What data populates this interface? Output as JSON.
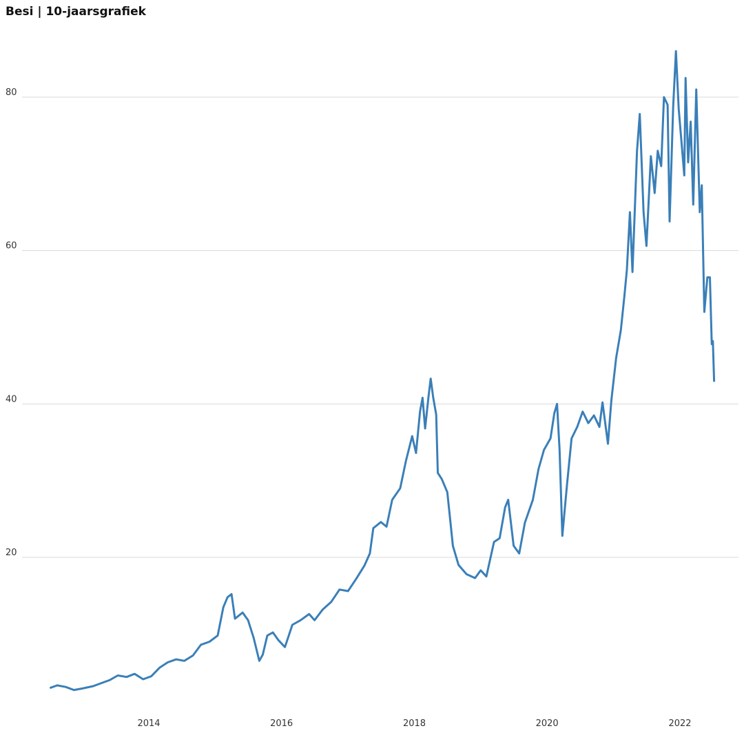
{
  "chart_data": {
    "type": "line",
    "title": "Besi | 10-jaarsgrafiek",
    "xlabel": "",
    "ylabel": "",
    "x_axis": {
      "kind": "time",
      "range": [
        "2012-07-01",
        "2022-12-31"
      ],
      "ticks": [
        {
          "value": "2014-01-01",
          "label": "2014"
        },
        {
          "value": "2016-01-01",
          "label": "2016"
        },
        {
          "value": "2018-01-01",
          "label": "2018"
        },
        {
          "value": "2020-01-01",
          "label": "2020"
        },
        {
          "value": "2022-01-01",
          "label": "2022"
        }
      ]
    },
    "y_axis": {
      "range": [
        0,
        88
      ],
      "ticks": [
        {
          "value": 20,
          "label": "20"
        },
        {
          "value": 40,
          "label": "40"
        },
        {
          "value": 60,
          "label": "60"
        },
        {
          "value": 80,
          "label": "80"
        }
      ]
    },
    "grid": "horizontal",
    "legend": "none",
    "line_color": "#3a7fb8",
    "grid_color": "#d9d9d9",
    "series": [
      {
        "name": "",
        "points": [
          [
            "2012-07-10",
            3.0
          ],
          [
            "2012-08-15",
            3.3
          ],
          [
            "2012-10-01",
            3.1
          ],
          [
            "2012-11-15",
            2.7
          ],
          [
            "2013-01-01",
            2.9
          ],
          [
            "2013-03-01",
            3.2
          ],
          [
            "2013-04-15",
            3.6
          ],
          [
            "2013-06-01",
            4.0
          ],
          [
            "2013-07-15",
            4.6
          ],
          [
            "2013-09-01",
            4.4
          ],
          [
            "2013-10-15",
            4.8
          ],
          [
            "2013-12-01",
            4.1
          ],
          [
            "2014-01-15",
            4.5
          ],
          [
            "2014-03-01",
            5.6
          ],
          [
            "2014-04-15",
            6.3
          ],
          [
            "2014-06-01",
            6.7
          ],
          [
            "2014-07-15",
            6.5
          ],
          [
            "2014-09-01",
            7.2
          ],
          [
            "2014-10-15",
            8.6
          ],
          [
            "2014-12-01",
            9.0
          ],
          [
            "2015-01-15",
            9.8
          ],
          [
            "2015-02-15",
            13.5
          ],
          [
            "2015-03-10",
            14.8
          ],
          [
            "2015-04-01",
            15.2
          ],
          [
            "2015-04-20",
            12.0
          ],
          [
            "2015-06-01",
            12.8
          ],
          [
            "2015-07-01",
            11.8
          ],
          [
            "2015-08-01",
            9.5
          ],
          [
            "2015-09-01",
            6.5
          ],
          [
            "2015-09-20",
            7.3
          ],
          [
            "2015-10-15",
            9.8
          ],
          [
            "2015-11-15",
            10.2
          ],
          [
            "2015-12-15",
            9.2
          ],
          [
            "2016-01-20",
            8.3
          ],
          [
            "2016-03-01",
            11.2
          ],
          [
            "2016-04-15",
            11.8
          ],
          [
            "2016-06-01",
            12.6
          ],
          [
            "2016-07-01",
            11.8
          ],
          [
            "2016-08-15",
            13.2
          ],
          [
            "2016-10-01",
            14.2
          ],
          [
            "2016-11-15",
            15.8
          ],
          [
            "2017-01-01",
            15.6
          ],
          [
            "2017-02-15",
            17.2
          ],
          [
            "2017-04-01",
            18.9
          ],
          [
            "2017-05-01",
            20.5
          ],
          [
            "2017-05-20",
            23.8
          ],
          [
            "2017-07-01",
            24.6
          ],
          [
            "2017-08-01",
            24.0
          ],
          [
            "2017-09-01",
            27.5
          ],
          [
            "2017-10-15",
            29.0
          ],
          [
            "2017-11-15",
            32.5
          ],
          [
            "2017-12-20",
            35.8
          ],
          [
            "2018-01-10",
            33.6
          ],
          [
            "2018-02-01",
            39.0
          ],
          [
            "2018-02-15",
            40.8
          ],
          [
            "2018-03-01",
            36.8
          ],
          [
            "2018-03-20",
            41.0
          ],
          [
            "2018-04-01",
            43.3
          ],
          [
            "2018-04-15",
            40.8
          ],
          [
            "2018-05-01",
            38.6
          ],
          [
            "2018-05-10",
            31.0
          ],
          [
            "2018-06-01",
            30.2
          ],
          [
            "2018-07-01",
            28.5
          ],
          [
            "2018-07-20",
            24.2
          ],
          [
            "2018-08-01",
            21.5
          ],
          [
            "2018-09-01",
            19.0
          ],
          [
            "2018-10-15",
            17.8
          ],
          [
            "2018-12-01",
            17.3
          ],
          [
            "2019-01-01",
            18.3
          ],
          [
            "2019-02-01",
            17.5
          ],
          [
            "2019-03-15",
            22.0
          ],
          [
            "2019-04-15",
            22.5
          ],
          [
            "2019-05-15",
            26.5
          ],
          [
            "2019-06-01",
            27.5
          ],
          [
            "2019-07-01",
            21.5
          ],
          [
            "2019-08-01",
            20.5
          ],
          [
            "2019-09-01",
            24.5
          ],
          [
            "2019-10-15",
            27.5
          ],
          [
            "2019-11-15",
            31.5
          ],
          [
            "2019-12-15",
            34.0
          ],
          [
            "2020-01-20",
            35.5
          ],
          [
            "2020-02-10",
            38.8
          ],
          [
            "2020-02-25",
            40.0
          ],
          [
            "2020-03-10",
            34.0
          ],
          [
            "2020-03-25",
            22.8
          ],
          [
            "2020-04-20",
            29.5
          ],
          [
            "2020-05-15",
            35.5
          ],
          [
            "2020-06-15",
            37.0
          ],
          [
            "2020-07-15",
            39.0
          ],
          [
            "2020-08-15",
            37.5
          ],
          [
            "2020-09-15",
            38.5
          ],
          [
            "2020-10-15",
            37.0
          ],
          [
            "2020-11-01",
            40.2
          ],
          [
            "2020-12-01",
            34.8
          ],
          [
            "2020-12-20",
            40.5
          ],
          [
            "2021-01-15",
            46.0
          ],
          [
            "2021-02-10",
            49.6
          ],
          [
            "2021-03-01",
            54.0
          ],
          [
            "2021-03-15",
            57.5
          ],
          [
            "2021-04-01",
            65.0
          ],
          [
            "2021-04-15",
            57.2
          ],
          [
            "2021-05-10",
            73.0
          ],
          [
            "2021-05-25",
            77.8
          ],
          [
            "2021-06-15",
            65.0
          ],
          [
            "2021-07-01",
            60.6
          ],
          [
            "2021-07-25",
            72.3
          ],
          [
            "2021-08-15",
            67.5
          ],
          [
            "2021-09-01",
            73.0
          ],
          [
            "2021-09-20",
            71.0
          ],
          [
            "2021-10-05",
            80.0
          ],
          [
            "2021-10-25",
            79.0
          ],
          [
            "2021-11-05",
            63.8
          ],
          [
            "2021-11-25",
            78.8
          ],
          [
            "2021-12-10",
            86.0
          ],
          [
            "2021-12-25",
            78.5
          ],
          [
            "2022-01-10",
            74.0
          ],
          [
            "2022-01-25",
            69.8
          ],
          [
            "2022-02-01",
            82.5
          ],
          [
            "2022-02-15",
            71.5
          ],
          [
            "2022-03-01",
            76.8
          ],
          [
            "2022-03-15",
            66.0
          ],
          [
            "2022-04-01",
            81.0
          ],
          [
            "2022-04-20",
            65.0
          ],
          [
            "2022-05-01",
            68.5
          ],
          [
            "2022-05-15",
            52.0
          ],
          [
            "2022-06-01",
            56.5
          ],
          [
            "2022-06-15",
            56.5
          ],
          [
            "2022-06-25",
            47.8
          ],
          [
            "2022-07-01",
            48.2
          ],
          [
            "2022-07-08",
            43.0
          ]
        ]
      }
    ]
  }
}
